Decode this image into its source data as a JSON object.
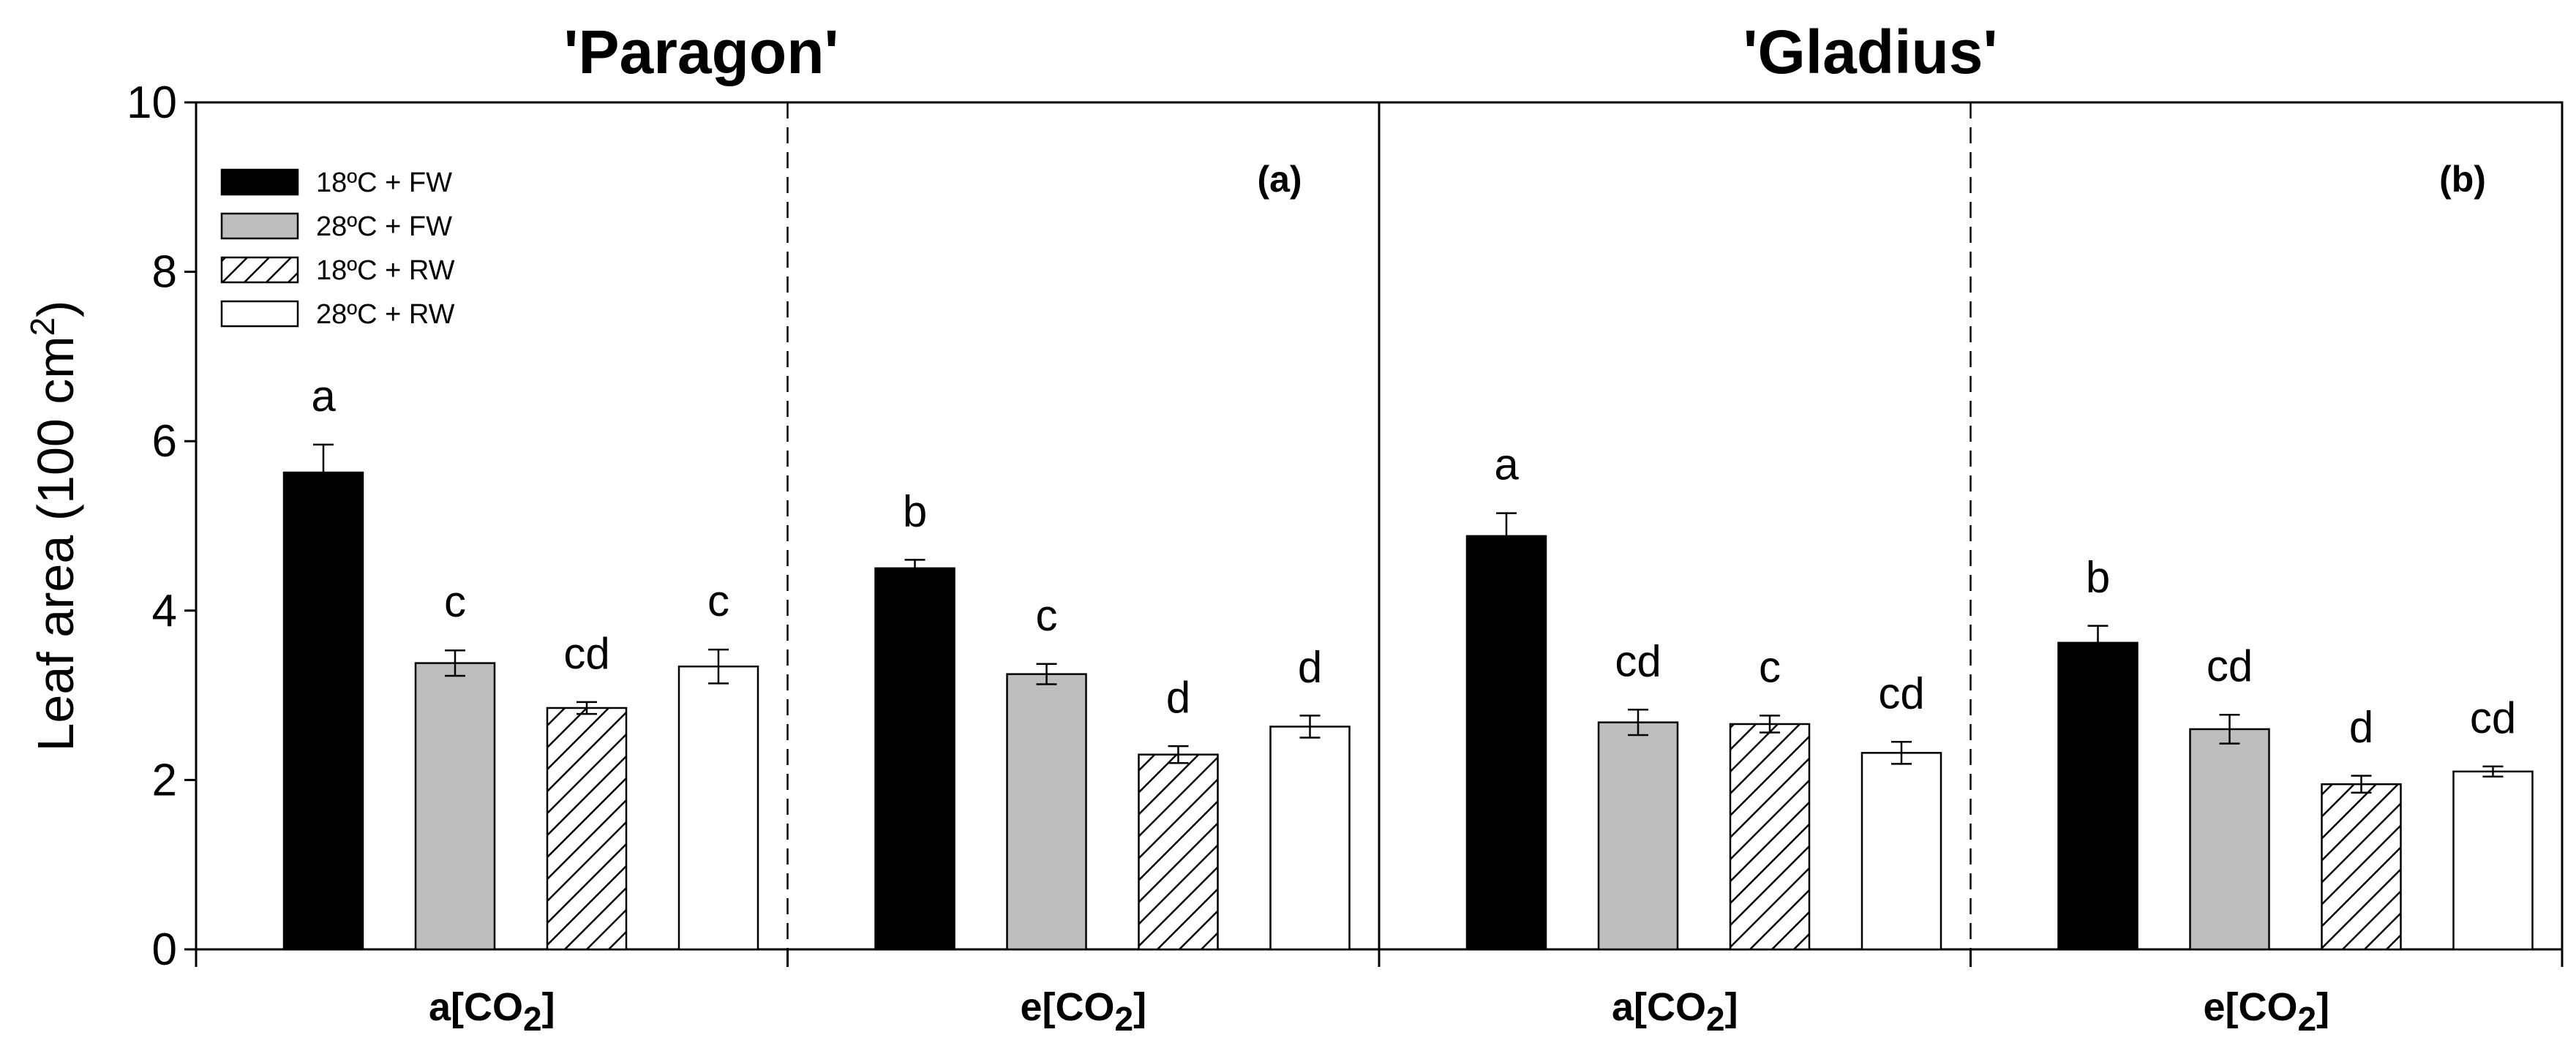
{
  "chart_data": {
    "type": "bar",
    "ylabel_main": "Leaf area (100 cm",
    "ylabel_sup": "2",
    "ylabel_end": ")",
    "ylim": [
      0,
      10
    ],
    "yticks": [
      "0",
      "2",
      "4",
      "6",
      "8",
      "10"
    ],
    "series": [
      {
        "name": "18ºC + FW",
        "style": "black"
      },
      {
        "name": "28ºC + FW",
        "style": "grey"
      },
      {
        "name": "18ºC + RW",
        "style": "hatched"
      },
      {
        "name": "28ºC + RW",
        "style": "white"
      }
    ],
    "panels": [
      {
        "title": "'Paragon'",
        "tag": "(a)",
        "groups": [
          {
            "label_main": "a[CO",
            "label_sub": "2",
            "label_end": "]",
            "values": [
              5.63,
              3.38,
              2.85,
              3.34
            ],
            "errors": [
              0.33,
              0.15,
              0.07,
              0.2
            ],
            "letters": [
              "a",
              "c",
              "cd",
              "c"
            ]
          },
          {
            "label_main": "e[CO",
            "label_sub": "2",
            "label_end": "]",
            "values": [
              4.5,
              3.25,
              2.3,
              2.63
            ],
            "errors": [
              0.1,
              0.12,
              0.1,
              0.13
            ],
            "letters": [
              "b",
              "c",
              "d",
              "d"
            ]
          }
        ]
      },
      {
        "title": "'Gladius'",
        "tag": "(b)",
        "groups": [
          {
            "label_main": "a[CO",
            "label_sub": "2",
            "label_end": "]",
            "values": [
              4.88,
              2.68,
              2.66,
              2.32
            ],
            "errors": [
              0.27,
              0.15,
              0.1,
              0.13
            ],
            "letters": [
              "a",
              "cd",
              "c",
              "cd"
            ]
          },
          {
            "label_main": "e[CO",
            "label_sub": "2",
            "label_end": "]",
            "values": [
              3.62,
              2.6,
              1.95,
              2.1
            ],
            "errors": [
              0.2,
              0.17,
              0.1,
              0.06
            ],
            "letters": [
              "b",
              "cd",
              "d",
              "cd"
            ]
          }
        ]
      }
    ]
  }
}
